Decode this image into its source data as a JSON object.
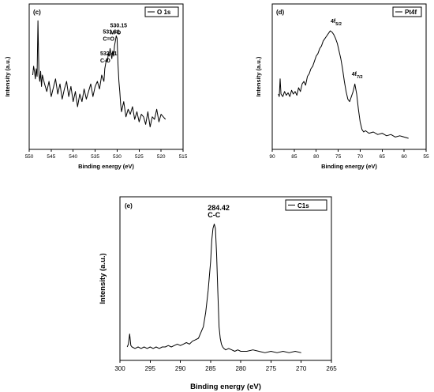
{
  "chart_data": [
    {
      "type": "line",
      "panel_label": "(c)",
      "legend": "O 1s",
      "xlabel": "Binding energy (eV)",
      "ylabel": "Intensity (a.u.)",
      "xlim": [
        550,
        515
      ],
      "ylim": [
        0,
        100
      ],
      "xticks": [
        550,
        545,
        540,
        535,
        530,
        525,
        520,
        515
      ],
      "annotations": [
        {
          "line1": "530.15",
          "line2": "M-O",
          "x": 530.15,
          "y": 84
        },
        {
          "line1": "531.81",
          "line2": "C=O",
          "x": 531.81,
          "y": 79
        },
        {
          "line1": "532.41",
          "line2": "C-O",
          "x": 532.41,
          "y": 62
        }
      ],
      "series": [
        {
          "x": [
            549.2,
            549.0,
            548.8,
            548.6,
            548.4,
            548.2,
            548.0,
            547.8,
            547.6,
            547.4,
            547.2,
            547.0,
            546.5,
            546.0,
            545.5,
            545.0,
            544.5,
            544.0,
            543.5,
            543.0,
            542.5,
            542.0,
            541.5,
            541.0,
            540.5,
            540.0,
            539.5,
            539.0,
            538.5,
            538.0,
            537.5,
            537.0,
            536.5,
            536.0,
            535.5,
            535.0,
            534.5,
            534.0,
            533.5,
            533.0,
            532.8,
            532.6,
            532.4,
            532.2,
            532.0,
            531.8,
            531.6,
            531.4,
            531.2,
            531.0,
            530.8,
            530.6,
            530.4,
            530.2,
            530.0,
            529.8,
            529.6,
            529.4,
            529.2,
            529.0,
            528.5,
            528.0,
            527.5,
            527.0,
            526.5,
            526.0,
            525.5,
            525.0,
            524.5,
            524.0,
            523.5,
            523.0,
            522.5,
            522.0,
            521.5,
            521.0,
            520.5,
            520.0,
            519.5,
            519.0
          ],
          "y": [
            55,
            62,
            58,
            52,
            60,
            54,
            98,
            56,
            50,
            58,
            46,
            55,
            48,
            42,
            50,
            38,
            45,
            52,
            40,
            48,
            36,
            44,
            50,
            38,
            46,
            34,
            42,
            30,
            40,
            34,
            44,
            36,
            42,
            48,
            38,
            46,
            50,
            44,
            55,
            50,
            60,
            64,
            68,
            66,
            72,
            70,
            76,
            72,
            68,
            74,
            70,
            78,
            82,
            86,
            84,
            64,
            50,
            42,
            32,
            26,
            34,
            22,
            28,
            24,
            30,
            20,
            26,
            18,
            24,
            22,
            16,
            26,
            14,
            22,
            20,
            28,
            18,
            24,
            22,
            20
          ]
        }
      ]
    },
    {
      "type": "line",
      "panel_label": "(d)",
      "legend": "Pt4f",
      "xlabel": "Binding energy (eV)",
      "ylabel": "Intensity (a.u.)",
      "xlim": [
        90,
        55
      ],
      "ylim": [
        0,
        100
      ],
      "xticks": [
        90,
        85,
        80,
        75,
        70,
        65,
        60,
        55
      ],
      "annotations": [
        {
          "main": "4f",
          "sub": "5/2",
          "x": 76.0,
          "y": 90
        },
        {
          "main": "4f",
          "sub": "7/2",
          "x": 71.2,
          "y": 48
        }
      ],
      "series": [
        {
          "x": [
            88.6,
            88.4,
            88.2,
            88.0,
            87.6,
            87.2,
            86.8,
            86.4,
            86.0,
            85.6,
            85.2,
            84.8,
            84.4,
            84.0,
            83.6,
            83.2,
            82.8,
            82.4,
            82.0,
            81.6,
            81.2,
            80.8,
            80.4,
            80.0,
            79.6,
            79.2,
            78.8,
            78.4,
            78.0,
            77.6,
            77.2,
            76.8,
            76.4,
            76.0,
            75.6,
            75.2,
            74.8,
            74.4,
            74.0,
            73.6,
            73.2,
            72.8,
            72.4,
            72.0,
            71.6,
            71.2,
            70.8,
            70.4,
            70.0,
            69.6,
            69.2,
            68.8,
            68.0,
            67.0,
            66.0,
            65.0,
            64.0,
            63.0,
            62.0,
            61.0,
            60.0,
            59.0
          ],
          "y": [
            40,
            38,
            52,
            40,
            38,
            42,
            39,
            41,
            38,
            43,
            40,
            42,
            39,
            45,
            42,
            48,
            50,
            47,
            54,
            56,
            60,
            62,
            66,
            70,
            72,
            76,
            78,
            82,
            84,
            86,
            88,
            90,
            89,
            87,
            84,
            80,
            74,
            68,
            60,
            50,
            42,
            36,
            34,
            38,
            42,
            48,
            40,
            28,
            18,
            12,
            10,
            11,
            9,
            10,
            8,
            9,
            7,
            8,
            6,
            7,
            6,
            5
          ]
        }
      ]
    },
    {
      "type": "line",
      "panel_label": "(e)",
      "legend": "C1s",
      "xlabel": "Binding energy (eV)",
      "ylabel": "Intensity (a.u.)",
      "xlim": [
        300,
        265
      ],
      "ylim": [
        0,
        100
      ],
      "xticks": [
        300,
        295,
        290,
        285,
        280,
        275,
        270,
        265
      ],
      "annotations": [
        {
          "line1": "284.42",
          "line2": "C-C",
          "x": 284.42,
          "y": 93
        }
      ],
      "series": [
        {
          "x": [
            298.8,
            298.6,
            298.4,
            298.2,
            298.0,
            297.5,
            297.0,
            296.5,
            296.0,
            295.5,
            295.0,
            294.5,
            294.0,
            293.5,
            293.0,
            292.5,
            292.0,
            291.5,
            291.0,
            290.5,
            290.0,
            289.5,
            289.0,
            288.5,
            288.0,
            287.5,
            287.0,
            286.6,
            286.2,
            285.8,
            285.4,
            285.0,
            284.8,
            284.6,
            284.4,
            284.2,
            284.0,
            283.8,
            283.6,
            283.4,
            283.2,
            283.0,
            282.8,
            282.5,
            282.0,
            281.5,
            281.0,
            280.5,
            280.0,
            279.0,
            278.0,
            277.0,
            276.0,
            275.0,
            274.0,
            273.0,
            272.0,
            271.0,
            270.0
          ],
          "y": [
            6,
            8,
            15,
            7,
            6,
            5,
            6,
            5,
            6,
            5,
            6,
            5,
            6,
            5,
            6,
            6,
            7,
            6,
            7,
            8,
            7,
            8,
            9,
            8,
            10,
            11,
            12,
            16,
            20,
            30,
            45,
            65,
            80,
            88,
            91,
            88,
            70,
            45,
            20,
            12,
            8,
            6,
            5,
            4,
            5,
            4,
            3,
            4,
            3,
            3,
            4,
            3,
            2,
            3,
            2,
            3,
            2,
            3,
            2
          ]
        }
      ]
    }
  ]
}
